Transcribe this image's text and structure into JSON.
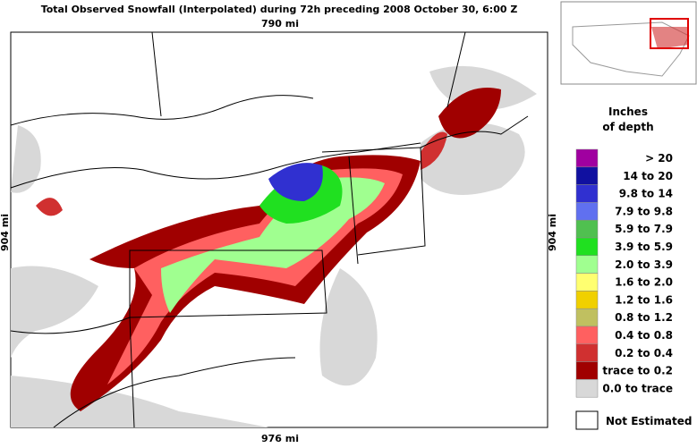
{
  "header": {
    "title": "Total Observed Snowfall (Interpolated) during 72h preceding 2008 October 30, 6:00 Z"
  },
  "map": {
    "top_scale": "790 mi",
    "bottom_scale": "976 mi",
    "left_scale": "904 mi",
    "right_scale": "904 mi"
  },
  "legend": {
    "title": [
      "Inches",
      "of depth"
    ],
    "items": [
      {
        "label": ">   20",
        "color": "#a000a0"
      },
      {
        "label": "14 to   20",
        "color": "#1010a0"
      },
      {
        "label": "9.8 to   14",
        "color": "#3030d0"
      },
      {
        "label": "7.9 to  9.8",
        "color": "#6070f0"
      },
      {
        "label": "5.9 to  7.9",
        "color": "#50c050"
      },
      {
        "label": "3.9 to  5.9",
        "color": "#20e020"
      },
      {
        "label": "2.0 to  3.9",
        "color": "#a0ff90"
      },
      {
        "label": "1.6 to  2.0",
        "color": "#ffff70"
      },
      {
        "label": "1.2 to  1.6",
        "color": "#f0d000"
      },
      {
        "label": "0.8 to  1.2",
        "color": "#c0c060"
      },
      {
        "label": "0.4 to  0.8",
        "color": "#ff6060"
      },
      {
        "label": "0.2 to  0.4",
        "color": "#d03030"
      },
      {
        "label": "trace to  0.2",
        "color": "#a00000"
      },
      {
        "label": "0.0 to trace",
        "color": "#d8d8d8"
      }
    ],
    "not_estimated": "Not Estimated"
  }
}
